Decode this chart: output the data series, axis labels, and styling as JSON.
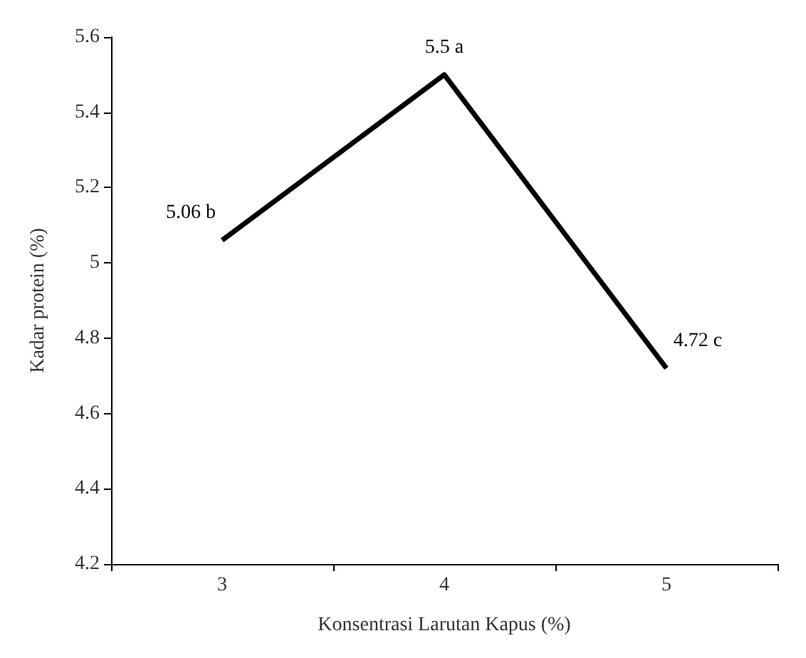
{
  "chart_data": {
    "type": "line",
    "xlabel": "Konsentrasi Larutan Kapus (%)",
    "ylabel": "Kadar protein (%)",
    "categories": [
      "3",
      "4",
      "5"
    ],
    "series": [
      {
        "color": "#000000",
        "values": [
          5.06,
          5.5,
          4.72
        ],
        "value_labels": [
          "5.06 b",
          "5.5 a",
          "4.72 c"
        ]
      }
    ],
    "ylim": [
      4.2,
      5.6
    ],
    "yticks": [
      4.2,
      4.4,
      4.6,
      4.8,
      5,
      5.2,
      5.4,
      5.6
    ],
    "grid": false,
    "marker": "none",
    "line_style": "solid"
  }
}
